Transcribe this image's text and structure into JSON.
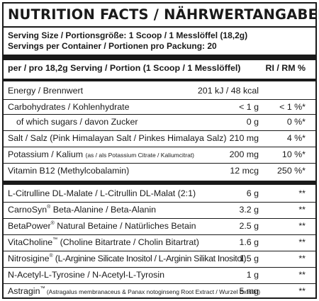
{
  "title": "NUTRITION FACTS / NÄHRWERTANGABEN",
  "serving_size": "Serving Size / Portionsgröße: 1 Scoop / 1 Messlöffel (18,2g)",
  "servings_per_container": "Servings per Container / Portionen pro Packung: 20",
  "header": {
    "label": "per / pro 18,2g Serving / Portion (1 Scoop / 1 Messlöffel)",
    "ri": "RI / RM %"
  },
  "rows": [
    {
      "label": "Energy / Brennwert",
      "amount": "201 kJ / 48 kcal",
      "ri": ""
    },
    {
      "label": "Carbohydrates / Kohlenhydrate",
      "amount": "< 1 g",
      "ri": "< 1 %*"
    },
    {
      "label": "of which sugars / davon Zucker",
      "amount": "0 g",
      "ri": "0 %*"
    },
    {
      "label": "Salt / Salz (Pink Himalayan Salt / Pinkes Himalaya Salz)",
      "amount": "210 mg",
      "ri": "4 %*"
    },
    {
      "label": "Potassium / Kalium ",
      "label_small": "(as / als Potassium Citrate / Kaliumcitrat)",
      "amount": "200 mg",
      "ri": "10 %*"
    },
    {
      "label": "Vitamin B12 (Methylcobalamin)",
      "amount": "12 mcg",
      "ri": "250 %*"
    }
  ],
  "ingredients": [
    {
      "label": "L-Citrulline DL-Malate / L-Citrullin DL-Malat (2:1)",
      "amount": "6 g",
      "ri": "**"
    },
    {
      "label": "CarnoSyn",
      "sup": "®",
      "label_rest": " Beta-Alanine / Beta-Alanin",
      "amount": "3.2 g",
      "ri": "**"
    },
    {
      "label": "BetaPower",
      "sup": "®",
      "label_rest": " Natural Betaine / Natürliches Betain",
      "amount": "2.5 g",
      "ri": "**"
    },
    {
      "label": "VitaCholine",
      "sup": "™",
      "label_rest": " (Choline Bitartrate / Cholin Bitartrat)",
      "amount": "1.6 g",
      "ri": "**"
    },
    {
      "label": "Nitrosigine",
      "sup": "®",
      "label_rest": " (L-Arginine Silicate Inositol / L-Arginin Silikat Inositol)",
      "amount": "1.5 g",
      "ri": "**"
    },
    {
      "label": "N-Acetyl-L-Tyrosine / N-Acetyl-L-Tyrosin",
      "amount": "1 g",
      "ri": "**"
    },
    {
      "label": "Astragin",
      "sup": "™",
      "label_small": " (Astragalus membranaceus & Panax notoginseng Root Extract / Wurzel Extrakt)",
      "amount": "5 mg",
      "ri": "**"
    }
  ]
}
